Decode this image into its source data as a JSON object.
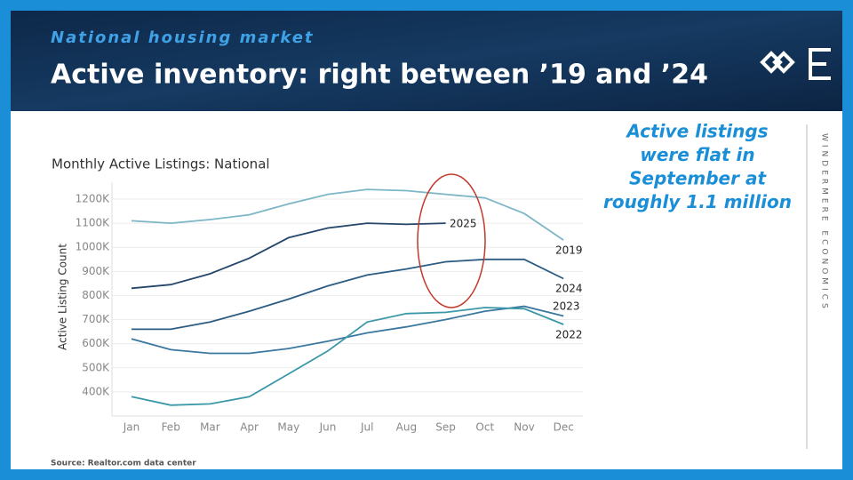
{
  "header": {
    "kicker": "National housing market",
    "title": "Active inventory: right between ’19 and ’24",
    "brand": "WINDERMERE ECONOMICS"
  },
  "annotation": [
    "Active listings",
    "were flat in",
    "September at",
    "roughly 1.1 million"
  ],
  "source": "Source: Realtor.com data center",
  "chart_data": {
    "type": "line",
    "title": "Monthly Active Listings: National",
    "y_label": "Active Listing Count",
    "categories": [
      "Jan",
      "Feb",
      "Mar",
      "Apr",
      "May",
      "Jun",
      "Jul",
      "Aug",
      "Sep",
      "Oct",
      "Nov",
      "Dec"
    ],
    "ylim": [
      300000,
      1270000
    ],
    "yticks": [
      {
        "value": 400000,
        "label": "400K"
      },
      {
        "value": 500000,
        "label": "500K"
      },
      {
        "value": 600000,
        "label": "600K"
      },
      {
        "value": 700000,
        "label": "700K"
      },
      {
        "value": 800000,
        "label": "800K"
      },
      {
        "value": 900000,
        "label": "900K"
      },
      {
        "value": 1000000,
        "label": "1000K"
      },
      {
        "value": 1100000,
        "label": "1100K"
      },
      {
        "value": 1200000,
        "label": "1200K"
      }
    ],
    "grid": true,
    "series": [
      {
        "name": "2019",
        "color": "#7db6c6",
        "values": [
          1110000,
          1100000,
          1115000,
          1135000,
          1180000,
          1220000,
          1240000,
          1235000,
          1220000,
          1205000,
          1140000,
          1030000
        ]
      },
      {
        "name": "2025",
        "color": "#25476b",
        "values": [
          830000,
          845000,
          890000,
          955000,
          1040000,
          1080000,
          1100000,
          1095000,
          1100000,
          null,
          null,
          null
        ]
      },
      {
        "name": "2024",
        "color": "#2c5c82",
        "values": [
          660000,
          660000,
          690000,
          735000,
          785000,
          840000,
          885000,
          910000,
          940000,
          950000,
          950000,
          870000
        ]
      },
      {
        "name": "2023",
        "color": "#3b78a0",
        "values": [
          620000,
          575000,
          560000,
          560000,
          580000,
          610000,
          645000,
          670000,
          700000,
          735000,
          755000,
          715000
        ]
      },
      {
        "name": "2022",
        "color": "#3a98a8",
        "values": [
          380000,
          345000,
          350000,
          380000,
          475000,
          570000,
          690000,
          725000,
          730000,
          750000,
          745000,
          680000
        ]
      }
    ]
  }
}
